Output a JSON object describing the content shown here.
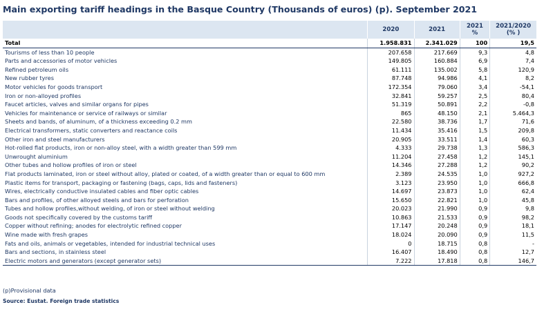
{
  "title": "Main exporting tariff headings in the Basque Country (Thousands of euros) (p). September 2021",
  "table": {
    "headers": [
      "",
      "2020",
      "2021",
      "2021\n%",
      "2021/2020\n(% )"
    ],
    "total": {
      "label": "Total",
      "v2020": "1.958.831",
      "v2021": "2.341.029",
      "share": "100",
      "change": "19,5"
    },
    "rows": [
      {
        "label": "Tourisms of less than 10 people",
        "v2020": "207.658",
        "v2021": "217.669",
        "share": "9,3",
        "change": "4,8"
      },
      {
        "label": "Parts and accessories of motor vehicles",
        "v2020": "149.805",
        "v2021": "160.884",
        "share": "6,9",
        "change": "7,4"
      },
      {
        "label": "Refined petroleum oils",
        "v2020": "61.111",
        "v2021": "135.002",
        "share": "5,8",
        "change": "120,9"
      },
      {
        "label": "New rubber tyres",
        "v2020": "87.748",
        "v2021": "94.986",
        "share": "4,1",
        "change": "8,2"
      },
      {
        "label": "Motor vehicles for goods transport",
        "v2020": "172.354",
        "v2021": "79.060",
        "share": "3,4",
        "change": "-54,1"
      },
      {
        "label": "Iron or non-alloyed profiles",
        "v2020": "32.841",
        "v2021": "59.257",
        "share": "2,5",
        "change": "80,4"
      },
      {
        "label": "Faucet articles, valves and similar organs for pipes",
        "v2020": "51.319",
        "v2021": "50.891",
        "share": "2,2",
        "change": "-0,8"
      },
      {
        "label": "Vehicles for maintenance or service of railways or similar",
        "v2020": "865",
        "v2021": "48.150",
        "share": "2,1",
        "change": "5.464,3"
      },
      {
        "label": "Sheets and bands, of aluminum, of a thickness exceeding 0.2 mm",
        "v2020": "22.580",
        "v2021": "38.736",
        "share": "1,7",
        "change": "71,6"
      },
      {
        "label": "Electrical transformers, static converters and reactance coils",
        "v2020": "11.434",
        "v2021": "35.416",
        "share": "1,5",
        "change": "209,8"
      },
      {
        "label": "Other iron and steel manufacturers",
        "v2020": "20.905",
        "v2021": "33.511",
        "share": "1,4",
        "change": "60,3"
      },
      {
        "label": "Hot-rolled flat products, iron or non-alloy steel, with a width greater than 599 mm",
        "v2020": "4.333",
        "v2021": "29.738",
        "share": "1,3",
        "change": "586,3"
      },
      {
        "label": "Unwrought aluminium",
        "v2020": "11.204",
        "v2021": "27.458",
        "share": "1,2",
        "change": "145,1"
      },
      {
        "label": "Other tubes and hollow profiles of iron or steel",
        "v2020": "14.346",
        "v2021": "27.288",
        "share": "1,2",
        "change": "90,2"
      },
      {
        "label": "Flat products laminated, iron or steel without alloy, plated or coated, of a width greater than or equal to 600 mm",
        "v2020": "2.389",
        "v2021": "24.535",
        "share": "1,0",
        "change": "927,2"
      },
      {
        "label": "Plastic items for transport, packaging or fastening (bags, caps, lids and fasteners)",
        "v2020": "3.123",
        "v2021": "23.950",
        "share": "1,0",
        "change": "666,8"
      },
      {
        "label": "Wires, electrically conductive insulated cables and fiber optic cables",
        "v2020": "14.697",
        "v2021": "23.873",
        "share": "1,0",
        "change": "62,4"
      },
      {
        "label": "Bars and profiles, of other alloyed steels and bars for perforation",
        "v2020": "15.650",
        "v2021": "22.821",
        "share": "1,0",
        "change": "45,8"
      },
      {
        "label": "Tubes and hollow profiles,without welding, of iron or steel without welding",
        "v2020": "20.023",
        "v2021": "21.990",
        "share": "0,9",
        "change": "9,8"
      },
      {
        "label": "Goods not specifically covered by the customs tariff",
        "v2020": "10.863",
        "v2021": "21.533",
        "share": "0,9",
        "change": "98,2"
      },
      {
        "label": "Copper without refining; anodes for electrolytic refined copper",
        "v2020": "17.147",
        "v2021": "20.248",
        "share": "0,9",
        "change": "18,1"
      },
      {
        "label": "Wine made with fresh grapes",
        "v2020": "18.024",
        "v2021": "20.090",
        "share": "0,9",
        "change": "11,5"
      },
      {
        "label": "Fats and oils, animals or vegetables, intended for industrial technical uses",
        "v2020": "0",
        "v2021": "18.715",
        "share": "0,8",
        "change": "-"
      },
      {
        "label": "Bars and sections, in stainless steel",
        "v2020": "16.407",
        "v2021": "18.490",
        "share": "0,8",
        "change": "12,7"
      },
      {
        "label": "Electric motors and generators (except generator sets)",
        "v2020": "7.222",
        "v2021": "17.818",
        "share": "0,8",
        "change": "146,7"
      }
    ]
  },
  "note": "(p)Provisional data",
  "source": "Source: Eustat. Foreign trade statistics"
}
